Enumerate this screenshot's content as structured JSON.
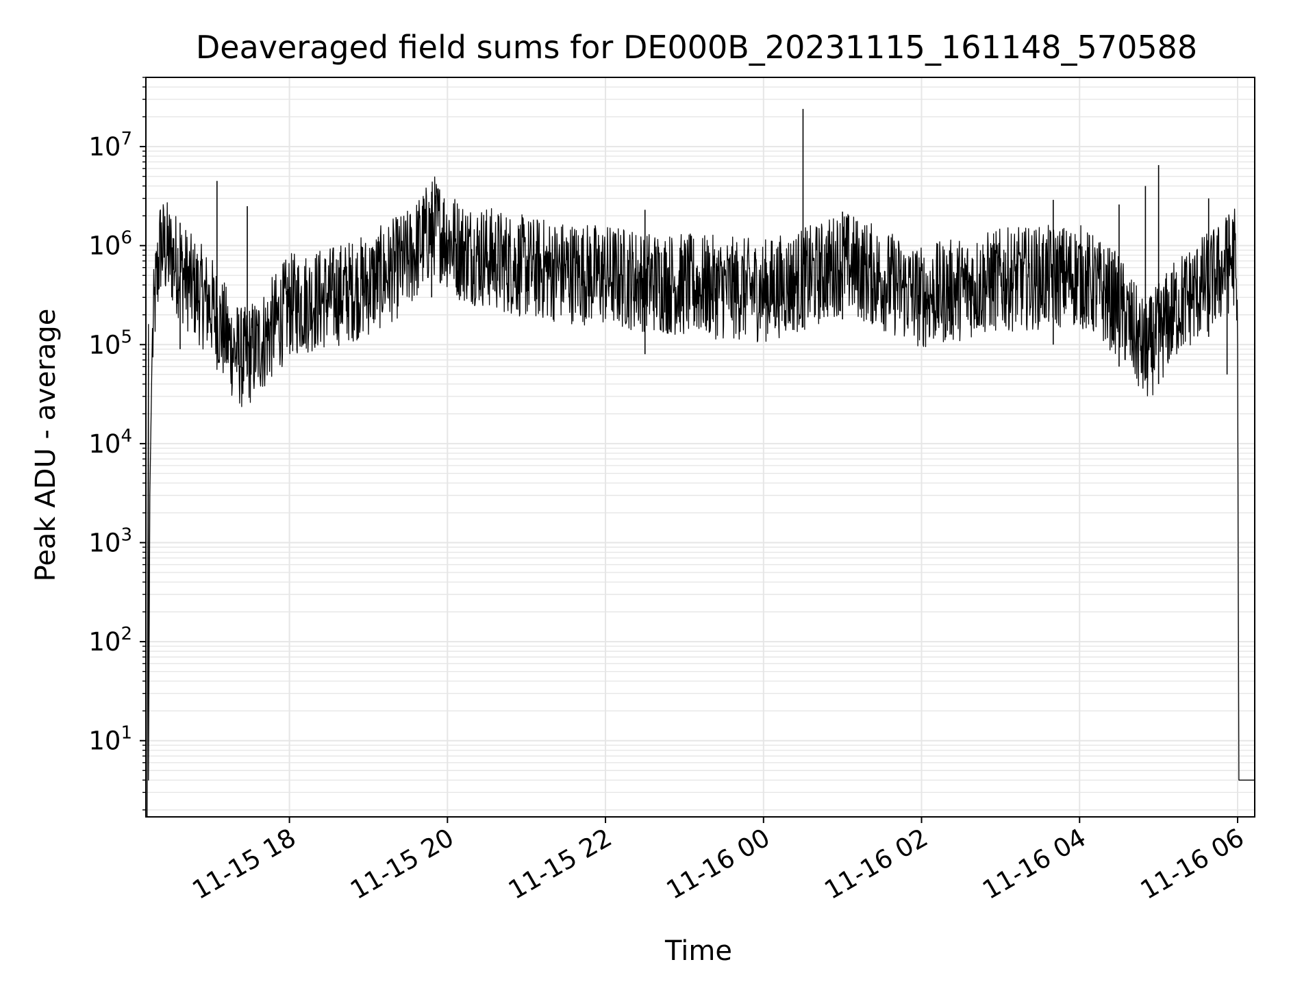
{
  "chart_data": {
    "type": "line",
    "title": "Deaveraged field sums for DE000B_20231115_161148_570588",
    "xlabel": "Time",
    "ylabel": "Peak ADU - average",
    "yscale": "log",
    "ylim": [
      1.7,
      50000000
    ],
    "xlim": [
      "2023-11-15 16:11",
      "2023-11-16 06:13"
    ],
    "grid": "on",
    "grid_color": "#e6e6e6",
    "line_color": "#000000",
    "x_ticks": [
      {
        "at": "2023-11-15 18:00",
        "label": "11-15 18"
      },
      {
        "at": "2023-11-15 20:00",
        "label": "11-15 20"
      },
      {
        "at": "2023-11-15 22:00",
        "label": "11-15 22"
      },
      {
        "at": "2023-11-16 00:00",
        "label": "11-16 00"
      },
      {
        "at": "2023-11-16 02:00",
        "label": "11-16 02"
      },
      {
        "at": "2023-11-16 04:00",
        "label": "11-16 04"
      },
      {
        "at": "2023-11-16 06:00",
        "label": "11-16 06"
      }
    ],
    "y_ticks": [
      {
        "value": 10,
        "base": "10",
        "exp": "1"
      },
      {
        "value": 100,
        "base": "10",
        "exp": "2"
      },
      {
        "value": 1000,
        "base": "10",
        "exp": "3"
      },
      {
        "value": 10000,
        "base": "10",
        "exp": "4"
      },
      {
        "value": 100000,
        "base": "10",
        "exp": "5"
      },
      {
        "value": 1000000,
        "base": "10",
        "exp": "6"
      },
      {
        "value": 10000000,
        "base": "10",
        "exp": "7"
      }
    ],
    "series": [
      {
        "points": [
          [
            "2023-11-15 16:12",
            0
          ],
          [
            "2023-11-15 16:12",
            1.7
          ],
          [
            "2023-11-15 16:13",
            160000
          ],
          [
            "2023-11-15 16:13",
            4
          ],
          [
            "2023-11-15 16:14",
            3000
          ],
          [
            "2023-11-15 16:16",
            100000
          ],
          [
            "2023-11-15 16:18",
            300000
          ],
          [
            "2023-11-15 16:22",
            1000000
          ],
          [
            "2023-11-15 16:30",
            800000
          ],
          [
            "2023-11-15 16:45",
            400000
          ],
          [
            "2023-11-15 17:00",
            250000
          ],
          [
            "2023-11-15 17:15",
            100000
          ],
          [
            "2023-11-15 17:25",
            70000
          ],
          [
            "2023-11-15 17:40",
            110000
          ],
          [
            "2023-11-15 18:00",
            250000
          ],
          [
            "2023-11-15 18:30",
            300000
          ],
          [
            "2023-11-15 19:00",
            400000
          ],
          [
            "2023-11-15 19:30",
            700000
          ],
          [
            "2023-11-15 19:50",
            1600000
          ],
          [
            "2023-11-15 20:10",
            900000
          ],
          [
            "2023-11-15 21:00",
            600000
          ],
          [
            "2023-11-15 22:00",
            500000
          ],
          [
            "2023-11-15 23:00",
            400000
          ],
          [
            "2023-11-16 00:00",
            350000
          ],
          [
            "2023-11-16 00:40",
            500000
          ],
          [
            "2023-11-16 01:00",
            700000
          ],
          [
            "2023-11-16 02:00",
            300000
          ],
          [
            "2023-11-16 03:00",
            450000
          ],
          [
            "2023-11-16 04:00",
            500000
          ],
          [
            "2023-11-16 04:30",
            250000
          ],
          [
            "2023-11-16 04:50",
            80000
          ],
          [
            "2023-11-16 05:15",
            250000
          ],
          [
            "2023-11-16 05:45",
            500000
          ],
          [
            "2023-11-16 05:58",
            800000
          ],
          [
            "2023-11-16 06:00",
            100000
          ],
          [
            "2023-11-16 06:01",
            4
          ],
          [
            "2023-11-16 06:13",
            4
          ]
        ],
        "spikes": [
          [
            "2023-11-15 16:37",
            90000,
            1700000
          ],
          [
            "2023-11-15 17:05",
            80000,
            4500000
          ],
          [
            "2023-11-15 17:28",
            50000,
            2500000
          ],
          [
            "2023-11-15 19:48",
            300000,
            3500000
          ],
          [
            "2023-11-15 22:30",
            80000,
            2300000
          ],
          [
            "2023-11-16 00:30",
            150000,
            24000000
          ],
          [
            "2023-11-16 01:00",
            180000,
            2200000
          ],
          [
            "2023-11-16 03:40",
            100000,
            2900000
          ],
          [
            "2023-11-16 04:30",
            60000,
            2600000
          ],
          [
            "2023-11-16 04:50",
            45000,
            4000000
          ],
          [
            "2023-11-16 05:00",
            40000,
            6500000
          ],
          [
            "2023-11-16 05:38",
            120000,
            3000000
          ],
          [
            "2023-11-16 05:52",
            50000,
            1800000
          ]
        ]
      }
    ]
  }
}
